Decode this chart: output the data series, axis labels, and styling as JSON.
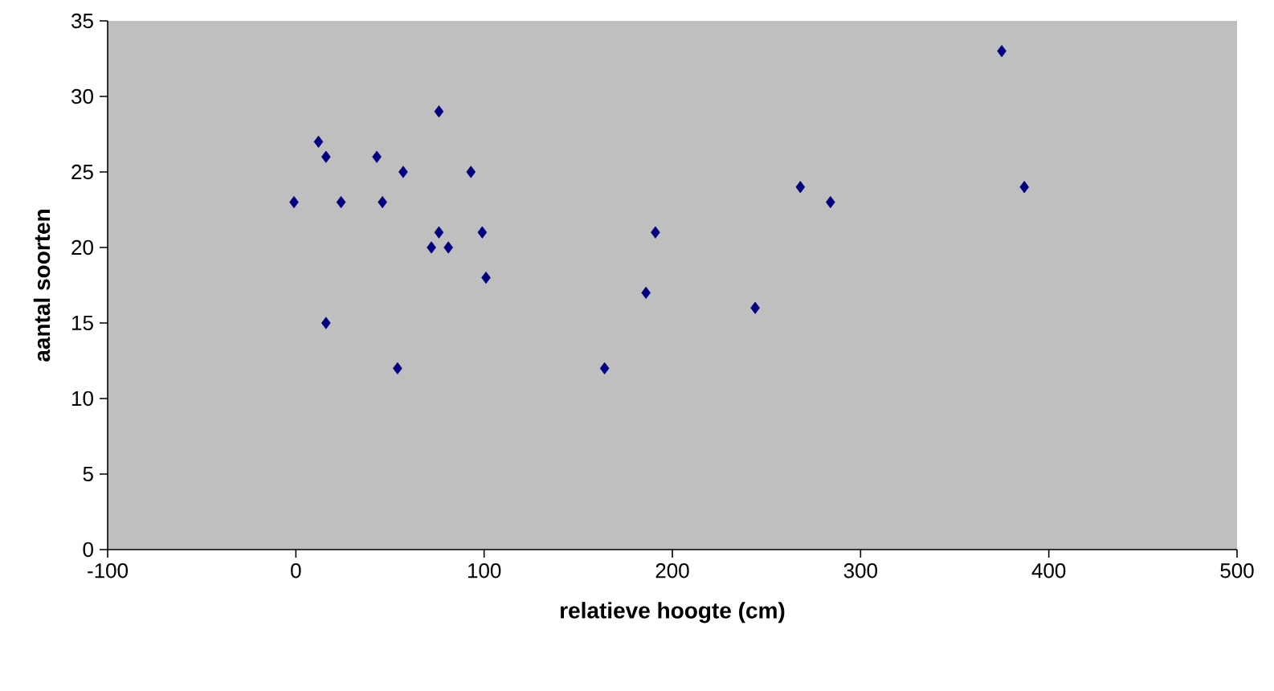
{
  "chart_data": {
    "type": "scatter",
    "xlabel": "relatieve hoogte (cm)",
    "ylabel": "aantal soorten",
    "x": [
      -1,
      12,
      16,
      16,
      24,
      43,
      46,
      54,
      57,
      76,
      72,
      76,
      81,
      93,
      99,
      101,
      164,
      186,
      191,
      244,
      268,
      284,
      375,
      387
    ],
    "series": [
      {
        "color": "#000080",
        "values": [
          23,
          27,
          26,
          15,
          23,
          26,
          23,
          12,
          25,
          29,
          20,
          21,
          20,
          25,
          21,
          18,
          12,
          17,
          21,
          16,
          24,
          23,
          33,
          24
        ]
      }
    ],
    "marker": "diamond",
    "grid": false,
    "xlim": [
      -100,
      500
    ],
    "xticks": [
      -100,
      0,
      100,
      200,
      300,
      400,
      500
    ],
    "ylim": [
      0,
      35
    ],
    "yticks": [
      0,
      5,
      10,
      15,
      20,
      25,
      30,
      35
    ]
  }
}
